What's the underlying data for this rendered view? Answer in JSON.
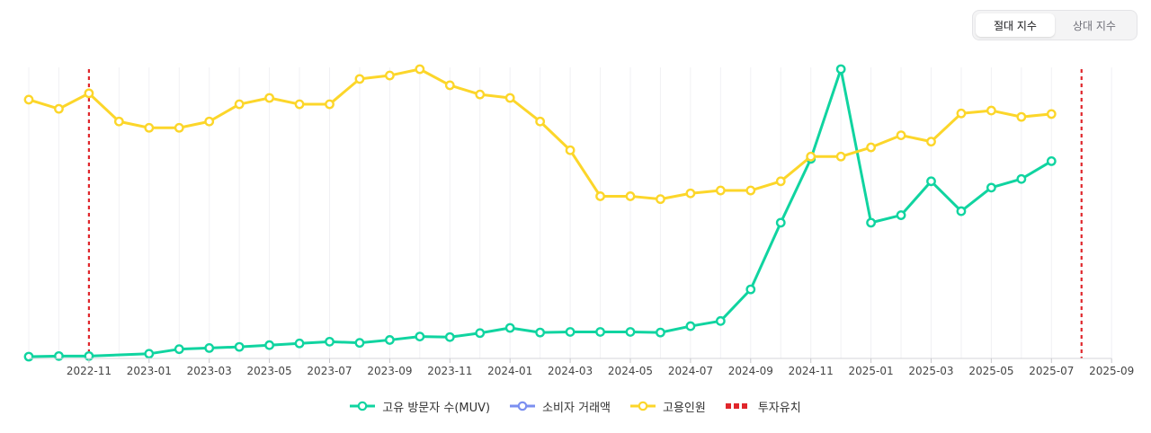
{
  "toggle": {
    "options": [
      "절대 지수",
      "상대 지수"
    ],
    "active_index": 0
  },
  "chart_data": {
    "type": "line",
    "title": "",
    "x_labels": [
      "2022-11",
      "2023-01",
      "2023-03",
      "2023-05",
      "2023-07",
      "2023-09",
      "2023-11",
      "2024-01",
      "2024-03",
      "2024-05",
      "2024-07",
      "2024-09",
      "2024-11",
      "2025-01",
      "2025-03",
      "2025-05",
      "2025-07",
      "2025-09"
    ],
    "x_range": [
      "2022-09",
      "2025-09"
    ],
    "y_range": [
      0,
      100
    ],
    "grid": "vertical",
    "series": [
      {
        "name": "고유 방문자 수(MUV)",
        "color": "#10d4a0",
        "points": [
          [
            "2022-09",
            0.0
          ],
          [
            "2022-10",
            0.2
          ],
          [
            "2022-11",
            0.2
          ],
          [
            "2023-01",
            1.0
          ],
          [
            "2023-02",
            2.6
          ],
          [
            "2023-03",
            3.0
          ],
          [
            "2023-04",
            3.4
          ],
          [
            "2023-05",
            4.0
          ],
          [
            "2023-06",
            4.6
          ],
          [
            "2023-07",
            5.2
          ],
          [
            "2023-08",
            4.8
          ],
          [
            "2023-09",
            5.8
          ],
          [
            "2023-10",
            7.0
          ],
          [
            "2023-11",
            6.8
          ],
          [
            "2023-12",
            8.2
          ],
          [
            "2024-01",
            10.0
          ],
          [
            "2024-02",
            8.4
          ],
          [
            "2024-03",
            8.6
          ],
          [
            "2024-04",
            8.6
          ],
          [
            "2024-05",
            8.6
          ],
          [
            "2024-06",
            8.4
          ],
          [
            "2024-07",
            10.6
          ],
          [
            "2024-08",
            12.4
          ],
          [
            "2024-09",
            23.4
          ],
          [
            "2024-10",
            46.6
          ],
          [
            "2024-11",
            68.8
          ],
          [
            "2024-12",
            100.0
          ],
          [
            "2025-01",
            46.6
          ],
          [
            "2025-02",
            49.2
          ],
          [
            "2025-03",
            61.0
          ],
          [
            "2025-04",
            50.6
          ],
          [
            "2025-05",
            58.8
          ],
          [
            "2025-06",
            61.8
          ],
          [
            "2025-07",
            68.0
          ]
        ]
      },
      {
        "name": "소비자 거래액",
        "color": "#7b8ff0",
        "points": []
      },
      {
        "name": "고용인원",
        "color": "#fcd62a",
        "points": [
          [
            "2022-09",
            89.4
          ],
          [
            "2022-10",
            86.2
          ],
          [
            "2022-11",
            91.6
          ],
          [
            "2022-12",
            81.8
          ],
          [
            "2023-01",
            79.6
          ],
          [
            "2023-02",
            79.6
          ],
          [
            "2023-03",
            81.8
          ],
          [
            "2023-04",
            87.8
          ],
          [
            "2023-05",
            90.0
          ],
          [
            "2023-06",
            87.8
          ],
          [
            "2023-07",
            87.8
          ],
          [
            "2023-08",
            96.6
          ],
          [
            "2023-09",
            97.8
          ],
          [
            "2023-10",
            100.0
          ],
          [
            "2023-11",
            94.4
          ],
          [
            "2023-12",
            91.2
          ],
          [
            "2024-01",
            90.0
          ],
          [
            "2024-02",
            81.8
          ],
          [
            "2024-03",
            71.8
          ],
          [
            "2024-04",
            55.8
          ],
          [
            "2024-05",
            55.8
          ],
          [
            "2024-06",
            54.8
          ],
          [
            "2024-07",
            56.8
          ],
          [
            "2024-08",
            57.8
          ],
          [
            "2024-09",
            57.8
          ],
          [
            "2024-10",
            61.0
          ],
          [
            "2024-11",
            69.6
          ],
          [
            "2024-12",
            69.6
          ],
          [
            "2025-01",
            72.8
          ],
          [
            "2025-02",
            77.0
          ],
          [
            "2025-03",
            74.8
          ],
          [
            "2025-04",
            84.6
          ],
          [
            "2025-05",
            85.6
          ],
          [
            "2025-06",
            83.4
          ],
          [
            "2025-07",
            84.4
          ]
        ]
      }
    ],
    "investment_markers": {
      "name": "투자유치",
      "color": "#e0262b",
      "dates": [
        "2022-11",
        "2025-08"
      ]
    }
  }
}
